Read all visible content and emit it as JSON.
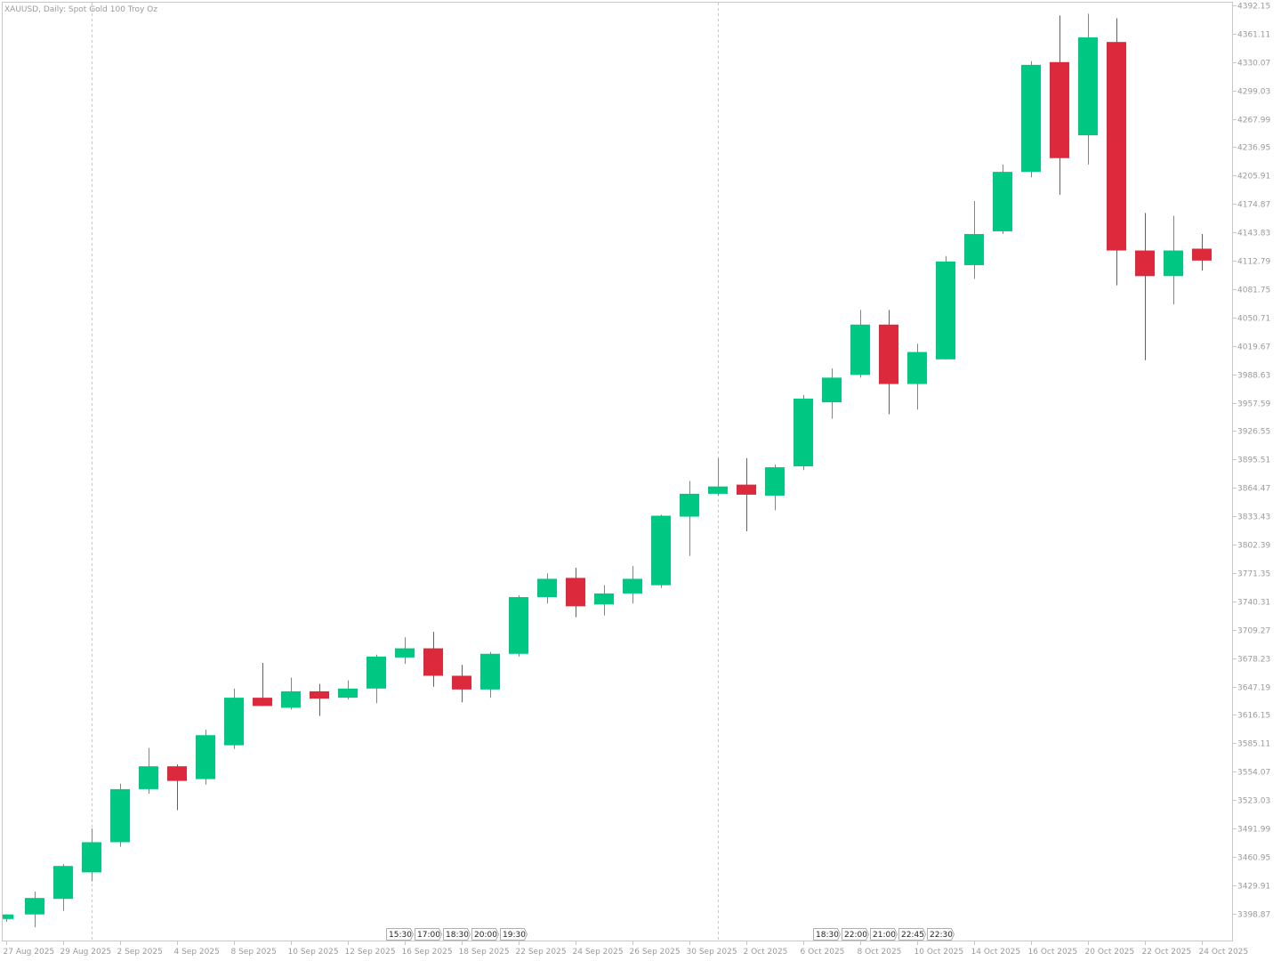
{
  "header": {
    "symbol_title": "XAUUSD, Daily:  Spot Gold 100 Troy Oz"
  },
  "colors": {
    "bull": "#00c882",
    "bear": "#dc2a3c",
    "axis": "#c8c8c8",
    "text": "#9a9a9a",
    "grid_separator": "#c8c8c8"
  },
  "chart_data": {
    "type": "candlestick",
    "title": "XAUUSD, Daily:  Spot Gold 100 Troy Oz",
    "ylim": [
      3368.5,
      4395.0
    ],
    "y_ticks": [
      3398.87,
      3429.91,
      3460.95,
      3491.99,
      3523.03,
      3554.07,
      3585.11,
      3616.15,
      3647.19,
      3678.23,
      3709.27,
      3740.31,
      3771.35,
      3802.39,
      3833.43,
      3864.47,
      3895.51,
      3926.55,
      3957.59,
      3988.63,
      4019.67,
      4050.71,
      4081.75,
      4112.79,
      4143.83,
      4174.87,
      4205.91,
      4236.95,
      4267.99,
      4299.03,
      4330.07,
      4361.11,
      4392.15
    ],
    "y_tick_labels": [
      "3398.87",
      "3429.91",
      "3460.95",
      "3491.99",
      "3523.03",
      "3554.07",
      "3585.11",
      "3616.15",
      "3647.19",
      "3678.23",
      "3709.27",
      "3740.31",
      "3771.35",
      "3802.39",
      "3833.43",
      "3864.47",
      "3895.51",
      "3926.55",
      "3957.59",
      "3988.63",
      "4019.67",
      "4050.71",
      "4081.75",
      "4112.79",
      "4143.83",
      "4174.87",
      "4205.91",
      "4236.95",
      "4267.99",
      "4299.03",
      "4330.07",
      "4361.11",
      "4392.15"
    ],
    "x_tick_labels": [
      {
        "label": "27 Aug 2025",
        "index": 0
      },
      {
        "label": "29 Aug 2025",
        "index": 2
      },
      {
        "label": "2 Sep 2025",
        "index": 4
      },
      {
        "label": "4 Sep 2025",
        "index": 6
      },
      {
        "label": "8 Sep 2025",
        "index": 8
      },
      {
        "label": "10 Sep 2025",
        "index": 10
      },
      {
        "label": "12 Sep 2025",
        "index": 12
      },
      {
        "label": "16 Sep 2025",
        "index": 14
      },
      {
        "label": "18 Sep 2025",
        "index": 16
      },
      {
        "label": "22 Sep 2025",
        "index": 18
      },
      {
        "label": "24 Sep 2025",
        "index": 20
      },
      {
        "label": "26 Sep 2025",
        "index": 22
      },
      {
        "label": "30 Sep 2025",
        "index": 24
      },
      {
        "label": "2 Oct 2025",
        "index": 26
      },
      {
        "label": "6 Oct 2025",
        "index": 28
      },
      {
        "label": "8 Oct 2025",
        "index": 30
      },
      {
        "label": "10 Oct 2025",
        "index": 32
      },
      {
        "label": "14 Oct 2025",
        "index": 34
      },
      {
        "label": "16 Oct 2025",
        "index": 36
      },
      {
        "label": "20 Oct 2025",
        "index": 38
      },
      {
        "label": "22 Oct 2025",
        "index": 40
      },
      {
        "label": "24 Oct 2025",
        "index": 42
      }
    ],
    "period_separators": [
      3,
      25
    ],
    "session_tags": [
      {
        "label": "15:30",
        "index": 13.35
      },
      {
        "label": "17:00",
        "index": 14.35
      },
      {
        "label": "18:30",
        "index": 15.35
      },
      {
        "label": "20:00",
        "index": 16.35
      },
      {
        "label": "19:30",
        "index": 17.35
      },
      {
        "label": "18:30",
        "index": 28.35
      },
      {
        "label": "22:00",
        "index": 29.35
      },
      {
        "label": "21:00",
        "index": 30.35
      },
      {
        "label": "22:45",
        "index": 31.35
      },
      {
        "label": "22:30",
        "index": 32.35
      }
    ],
    "candles": [
      {
        "o": 3393,
        "h": 3398,
        "l": 3390,
        "c": 3398
      },
      {
        "o": 3398,
        "h": 3423,
        "l": 3384,
        "c": 3416
      },
      {
        "o": 3415,
        "h": 3453,
        "l": 3402,
        "c": 3451
      },
      {
        "o": 3444,
        "h": 3492,
        "l": 3434,
        "c": 3477
      },
      {
        "o": 3477,
        "h": 3541,
        "l": 3472,
        "c": 3535
      },
      {
        "o": 3535,
        "h": 3580,
        "l": 3530,
        "c": 3560
      },
      {
        "o": 3560,
        "h": 3562,
        "l": 3512,
        "c": 3544
      },
      {
        "o": 3546,
        "h": 3600,
        "l": 3540,
        "c": 3594
      },
      {
        "o": 3583,
        "h": 3645,
        "l": 3579,
        "c": 3635
      },
      {
        "o": 3635,
        "h": 3673,
        "l": 3626,
        "c": 3626
      },
      {
        "o": 3624,
        "h": 3657,
        "l": 3622,
        "c": 3642
      },
      {
        "o": 3642,
        "h": 3650,
        "l": 3615,
        "c": 3634
      },
      {
        "o": 3635,
        "h": 3654,
        "l": 3633,
        "c": 3645
      },
      {
        "o": 3645,
        "h": 3682,
        "l": 3629,
        "c": 3680
      },
      {
        "o": 3679,
        "h": 3701,
        "l": 3672,
        "c": 3689
      },
      {
        "o": 3689,
        "h": 3707,
        "l": 3647,
        "c": 3659
      },
      {
        "o": 3659,
        "h": 3671,
        "l": 3630,
        "c": 3644
      },
      {
        "o": 3644,
        "h": 3685,
        "l": 3635,
        "c": 3683
      },
      {
        "o": 3683,
        "h": 3747,
        "l": 3680,
        "c": 3745
      },
      {
        "o": 3745,
        "h": 3771,
        "l": 3738,
        "c": 3765
      },
      {
        "o": 3766,
        "h": 3777,
        "l": 3723,
        "c": 3735
      },
      {
        "o": 3737,
        "h": 3758,
        "l": 3725,
        "c": 3749
      },
      {
        "o": 3749,
        "h": 3779,
        "l": 3738,
        "c": 3765
      },
      {
        "o": 3758,
        "h": 3835,
        "l": 3755,
        "c": 3834
      },
      {
        "o": 3833,
        "h": 3872,
        "l": 3790,
        "c": 3858
      },
      {
        "o": 3858,
        "h": 3897,
        "l": 3856,
        "c": 3866
      },
      {
        "o": 3868,
        "h": 3897,
        "l": 3817,
        "c": 3857
      },
      {
        "o": 3856,
        "h": 3890,
        "l": 3840,
        "c": 3887
      },
      {
        "o": 3888,
        "h": 3966,
        "l": 3884,
        "c": 3962
      },
      {
        "o": 3958,
        "h": 3995,
        "l": 3940,
        "c": 3985
      },
      {
        "o": 3988,
        "h": 4059,
        "l": 3985,
        "c": 4043
      },
      {
        "o": 4043,
        "h": 4059,
        "l": 3945,
        "c": 3978
      },
      {
        "o": 3978,
        "h": 4022,
        "l": 3950,
        "c": 4013
      },
      {
        "o": 4005,
        "h": 4118,
        "l": 4005,
        "c": 4112
      },
      {
        "o": 4108,
        "h": 4178,
        "l": 4093,
        "c": 4142
      },
      {
        "o": 4145,
        "h": 4218,
        "l": 4142,
        "c": 4210
      },
      {
        "o": 4210,
        "h": 4331,
        "l": 4204,
        "c": 4327
      },
      {
        "o": 4330,
        "h": 4381,
        "l": 4185,
        "c": 4225
      },
      {
        "o": 4250,
        "h": 4383,
        "l": 4218,
        "c": 4357
      },
      {
        "o": 4352,
        "h": 4378,
        "l": 4086,
        "c": 4124
      },
      {
        "o": 4124,
        "h": 4165,
        "l": 4004,
        "c": 4096
      },
      {
        "o": 4096,
        "h": 4162,
        "l": 4065,
        "c": 4124
      },
      {
        "o": 4126,
        "h": 4142,
        "l": 4102,
        "c": 4113
      }
    ]
  }
}
